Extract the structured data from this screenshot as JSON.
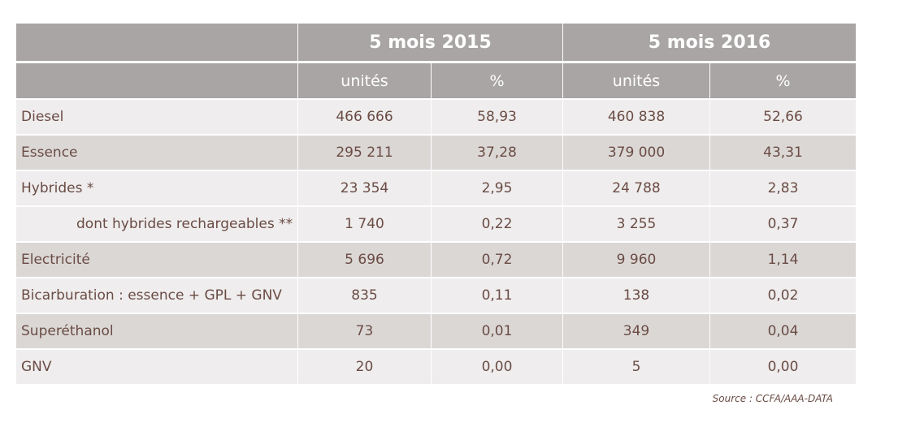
{
  "header": {
    "groups": [
      "5 mois 2015",
      "5 mois 2016"
    ],
    "subheaders": [
      "unités",
      "%",
      "unités",
      "%"
    ]
  },
  "table": {
    "rows": [
      [
        "Diesel",
        "466 666",
        "58,93",
        "460 838",
        "52,66"
      ],
      [
        "Essence",
        "295 211",
        "37,28",
        "379 000",
        "43,31"
      ],
      [
        "Hybrides *",
        "23 354",
        "2,95",
        "24 788",
        "2,83"
      ],
      [
        "dont hybrides rechargeables **",
        "1 740",
        "0,22",
        "3 255",
        "0,37"
      ],
      [
        "Electricité",
        "5 696",
        "0,72",
        "9 960",
        "1,14"
      ],
      [
        "Bicarburation : essence + GPL + GNV",
        "835",
        "0,11",
        "138",
        "0,02"
      ],
      [
        "Superéthanol",
        "73",
        "0,01",
        "349",
        "0,04"
      ],
      [
        "GNV",
        "20",
        "0,00",
        "5",
        "0,00"
      ]
    ]
  },
  "source": "Source : CCFA/AAA-DATA"
}
